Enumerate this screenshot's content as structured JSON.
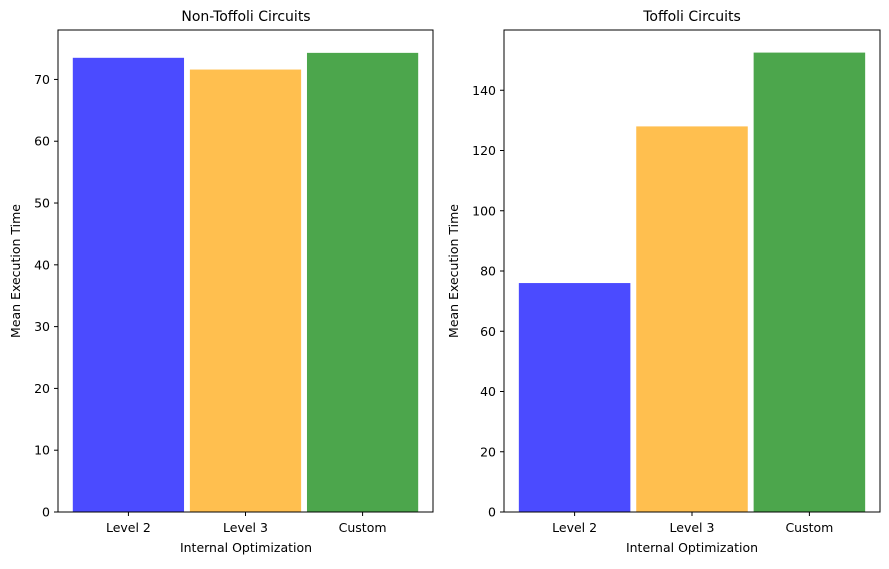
{
  "chart_data": [
    {
      "type": "bar",
      "title": "Non-Toffoli Circuits",
      "xlabel": "Internal Optimization",
      "ylabel": "Mean Execution Time",
      "categories": [
        "Level 2",
        "Level 3",
        "Custom"
      ],
      "values": [
        73.5,
        71.6,
        74.3
      ],
      "colors": [
        "#4B4BFF",
        "#FFBF4F",
        "#4CA64C"
      ],
      "ylim": [
        0,
        78
      ],
      "yticks": [
        0,
        10,
        20,
        30,
        40,
        50,
        60,
        70
      ],
      "grid": false,
      "legend": "none"
    },
    {
      "type": "bar",
      "title": "Toffoli Circuits",
      "xlabel": "Internal Optimization",
      "ylabel": "Mean Execution Time",
      "categories": [
        "Level 2",
        "Level 3",
        "Custom"
      ],
      "values": [
        76,
        128,
        152.5
      ],
      "colors": [
        "#4B4BFF",
        "#FFBF4F",
        "#4CA64C"
      ],
      "ylim": [
        0,
        160
      ],
      "yticks": [
        0,
        20,
        40,
        60,
        80,
        100,
        120,
        140
      ],
      "grid": false,
      "legend": "none"
    }
  ]
}
